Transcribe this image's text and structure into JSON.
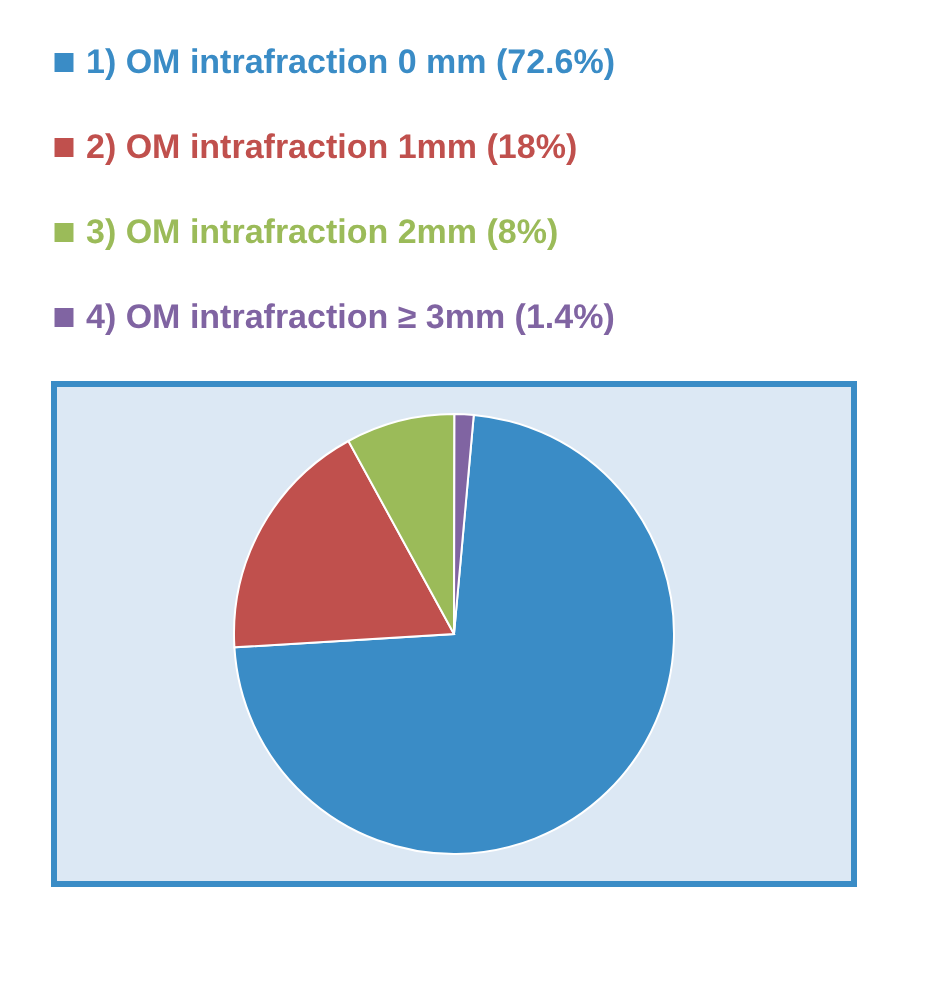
{
  "chart_data": {
    "type": "pie",
    "categories": [
      "1) OM intrafraction 0 mm (72.6%)",
      "2) OM intrafraction 1mm (18%)",
      "3) OM intrafraction 2mm  (8%)",
      "4) OM intrafraction  ≥ 3mm (1.4%)"
    ],
    "values": [
      72.6,
      18,
      8,
      1.4
    ],
    "colors": [
      "#3a8cc6",
      "#c0504d",
      "#9bbb59",
      "#8064a2"
    ],
    "legend": "top"
  }
}
